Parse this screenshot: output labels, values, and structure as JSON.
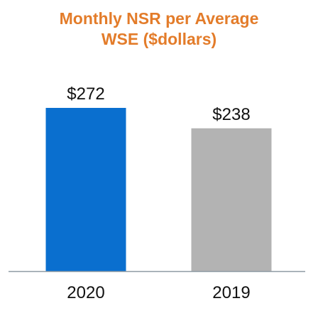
{
  "chart_data": {
    "type": "bar",
    "title_lines": [
      "Monthly NSR per Average",
      "WSE ($dollars)"
    ],
    "categories": [
      "2020",
      "2019"
    ],
    "values": [
      272,
      238
    ],
    "value_labels": [
      "$272",
      "$238"
    ],
    "ylim": [
      0,
      272
    ],
    "grid": false,
    "legend": "none",
    "colors": {
      "title": "#E37C2A",
      "bars": [
        "#0A6FCF",
        "#B3B3B3"
      ],
      "baseline": "#8E9AA3",
      "text": "#111111"
    }
  }
}
